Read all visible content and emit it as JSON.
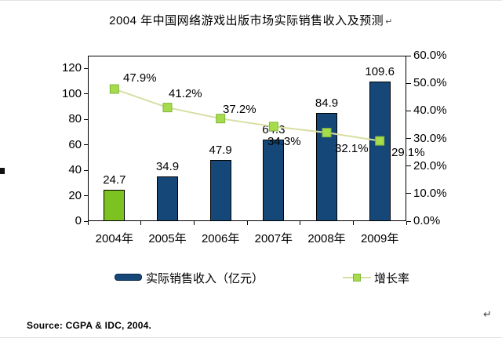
{
  "title": {
    "text": "2004 年中国网络游戏出版市场实际销售收入及预测",
    "paragraph_mark": "↵"
  },
  "source_line": "Source: CGPA & IDC, 2004.",
  "page_paragraph_mark": "↵",
  "legend": {
    "revenue_label": "实际销售收入（亿元）",
    "growth_label": "增长率"
  },
  "colors": {
    "bar_blue": "#154878",
    "bar_green_first": "#7CC322",
    "bar_border": "#000000",
    "growth_line": "#D9DEA4",
    "marker_fill": "#A6DB4C",
    "marker_border": "#7FB73C",
    "axis": "#000000",
    "text": "#000000"
  },
  "chart_data": {
    "type": "bar",
    "subtype": "combo-bar-line-dual-axis",
    "title": "2004 年中国网络游戏出版市场实际销售收入及预测",
    "categories": [
      "2004年",
      "2005年",
      "2006年",
      "2007年",
      "2008年",
      "2009年"
    ],
    "series": [
      {
        "name": "实际销售收入（亿元）",
        "type": "bar",
        "axis": "left",
        "values": [
          24.7,
          34.9,
          47.9,
          64.3,
          84.9,
          109.6
        ],
        "data_labels": [
          "24.7",
          "34.9",
          "47.9",
          "64.3",
          "84.9",
          "109.6"
        ]
      },
      {
        "name": "增长率",
        "type": "line",
        "axis": "right",
        "values": [
          47.9,
          41.2,
          37.2,
          34.3,
          32.1,
          29.1
        ],
        "data_labels": [
          "47.9%",
          "41.2%",
          "37.2%",
          "34.3%",
          "32.1%",
          "29.1%"
        ]
      }
    ],
    "left_axis": {
      "tick_labels": [
        "0",
        "20",
        "40",
        "60",
        "80",
        "100",
        "120"
      ],
      "tick_values": [
        0,
        20,
        40,
        60,
        80,
        100,
        120
      ],
      "top_value": 130
    },
    "right_axis": {
      "tick_labels": [
        "0.0%",
        "10.0%",
        "20.0%",
        "30.0%",
        "40.0%",
        "50.0%",
        "60.0%"
      ],
      "tick_values": [
        0,
        10,
        20,
        30,
        40,
        50,
        60
      ],
      "top_value": 60
    },
    "grid": false,
    "legend_position": "bottom"
  }
}
